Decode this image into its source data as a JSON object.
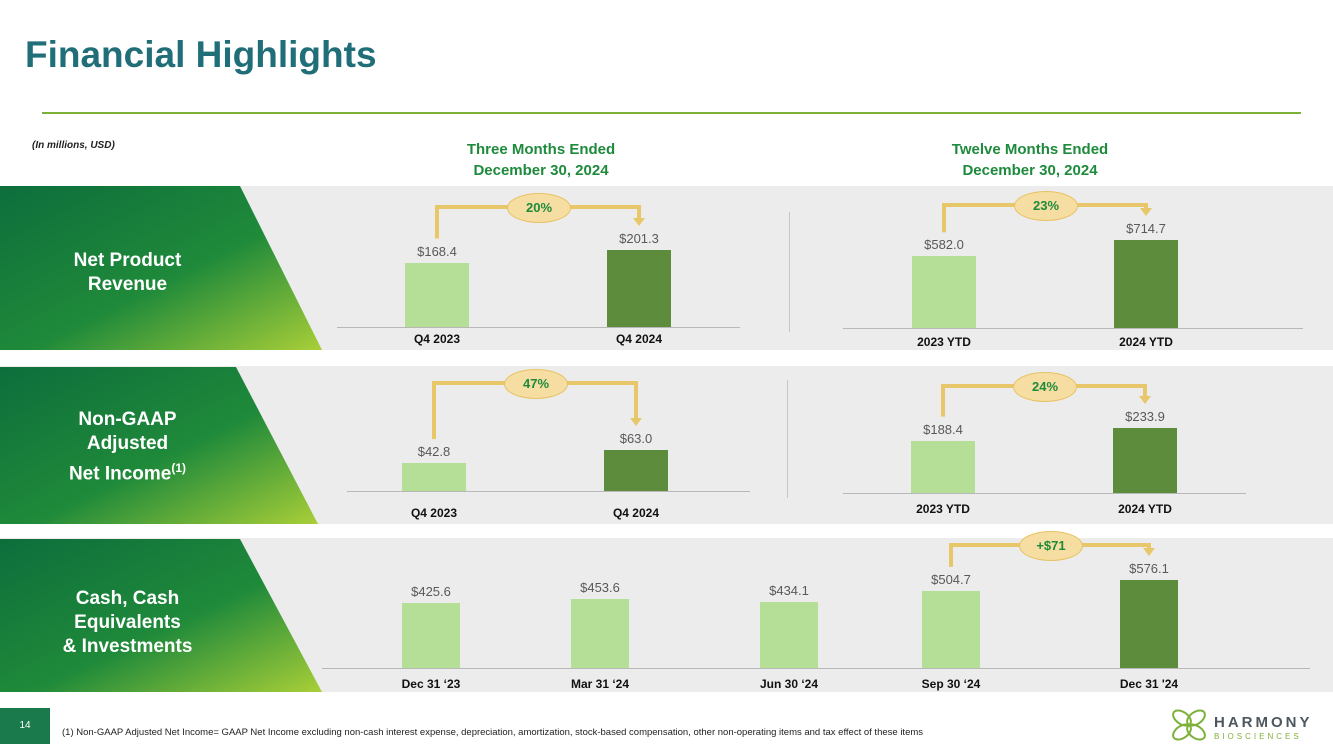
{
  "title": "Financial Highlights",
  "units_note": "(In millions, USD)",
  "headers": {
    "three_months": [
      "Three Months Ended",
      "December 30, 2024"
    ],
    "twelve_months": [
      "Twelve Months Ended",
      "December 30, 2024"
    ]
  },
  "rows": [
    {
      "label": [
        "Net Product",
        "Revenue"
      ],
      "left": {
        "categories": [
          "Q4 2023",
          "Q4 2024"
        ],
        "values": [
          168.4,
          201.3
        ],
        "labels": [
          "$168.4",
          "$201.3"
        ],
        "change": "20%"
      },
      "right": {
        "categories": [
          "2023 YTD",
          "2024 YTD"
        ],
        "values": [
          582.0,
          714.7
        ],
        "labels": [
          "$582.0",
          "$714.7"
        ],
        "change": "23%"
      }
    },
    {
      "label": [
        "Non-GAAP",
        "Adjusted",
        "Net Income"
      ],
      "label_sup": "(1)",
      "left": {
        "categories": [
          "Q4 2023",
          "Q4 2024"
        ],
        "values": [
          42.8,
          63.0
        ],
        "labels": [
          "$42.8",
          "$63.0"
        ],
        "change": "47%"
      },
      "right": {
        "categories": [
          "2023 YTD",
          "2024 YTD"
        ],
        "values": [
          188.4,
          233.9
        ],
        "labels": [
          "$188.4",
          "$233.9"
        ],
        "change": "24%"
      }
    },
    {
      "label": [
        "Cash, Cash",
        "Equivalents",
        "& Investments"
      ],
      "cash": {
        "categories": [
          "Dec 31 ‘23",
          "Mar 31 ‘24",
          "Jun 30 ‘24",
          "Sep 30 ‘24",
          "Dec 31 '24"
        ],
        "values": [
          425.6,
          453.6,
          434.1,
          504.7,
          576.1
        ],
        "labels": [
          "$425.6",
          "$453.6",
          "$434.1",
          "$504.7",
          "$576.1"
        ],
        "change": "+$71"
      }
    }
  ],
  "chart_data": [
    {
      "type": "bar",
      "title": "Net Product Revenue — Three Months Ended December 30, 2024",
      "categories": [
        "Q4 2023",
        "Q4 2024"
      ],
      "values": [
        168.4,
        201.3
      ]
    },
    {
      "type": "bar",
      "title": "Net Product Revenue — Twelve Months Ended December 30, 2024",
      "categories": [
        "2023 YTD",
        "2024 YTD"
      ],
      "values": [
        582.0,
        714.7
      ]
    },
    {
      "type": "bar",
      "title": "Non-GAAP Adjusted Net Income — Three Months Ended December 30, 2024",
      "categories": [
        "Q4 2023",
        "Q4 2024"
      ],
      "values": [
        42.8,
        63.0
      ]
    },
    {
      "type": "bar",
      "title": "Non-GAAP Adjusted Net Income — Twelve Months Ended December 30, 2024",
      "categories": [
        "2023 YTD",
        "2024 YTD"
      ],
      "values": [
        188.4,
        233.9
      ]
    },
    {
      "type": "bar",
      "title": "Cash, Cash Equivalents & Investments",
      "categories": [
        "Dec 31 ‘23",
        "Mar 31 ‘24",
        "Jun 30 ‘24",
        "Sep 30 ‘24",
        "Dec 31 '24"
      ],
      "values": [
        425.6,
        453.6,
        434.1,
        504.7,
        576.1
      ]
    }
  ],
  "colors": {
    "title": "#1f6e78",
    "accent_green": "#1e8a3c",
    "bar_light": "#b5de96",
    "bar_dark": "#5c8c3c",
    "pill_fill": "#f6dea3",
    "bracket": "#e8c66a"
  },
  "footer": {
    "page_number": "14",
    "footnote": "(1) Non-GAAP Adjusted Net Income= GAAP Net Income excluding non-cash interest expense, depreciation, amortization, stock-based compensation, other non-operating items and tax effect of these items",
    "logo_name": "HARMONY",
    "logo_sub": "BIOSCIENCES",
    "logo_icon": "helix-knot-icon"
  }
}
